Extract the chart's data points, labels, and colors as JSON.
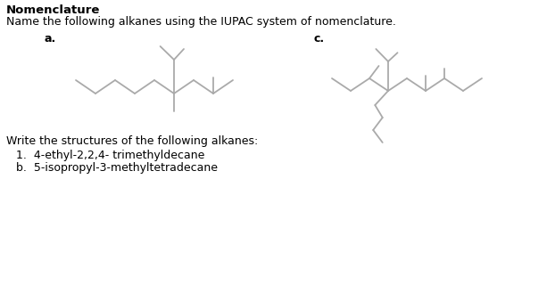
{
  "title": "Nomenclature",
  "subtitle": "Name the following alkanes using the IUPAC system of nomenclature.",
  "label_a": "a.",
  "label_c": "c.",
  "write_text": "Write the structures of the following alkanes:",
  "item1": "1.  4-ethyl-2,2,4- trimethyldecane",
  "item2": "b.  5-isopropyl-3-methyltetradecane",
  "bg_color": "#ffffff",
  "line_color": "#aaaaaa",
  "text_color": "#000000",
  "line_width": 1.3,
  "font_size_title": 9.5,
  "font_size_body": 9.0
}
